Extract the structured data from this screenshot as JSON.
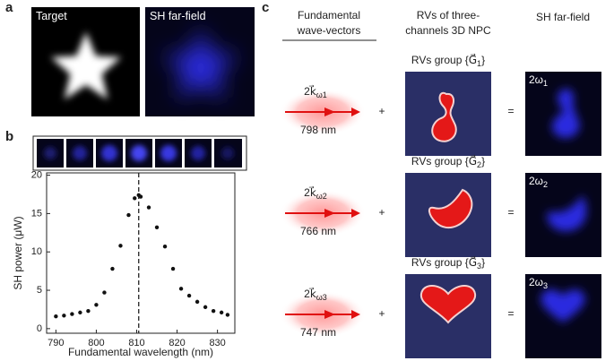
{
  "panel_labels": [
    "a",
    "b",
    "c"
  ],
  "panel_a": {
    "images": [
      "Target",
      "SH far-field"
    ]
  },
  "chart_data": {
    "type": "scatter",
    "x": [
      790,
      792,
      794,
      796,
      798,
      800,
      802,
      804,
      806,
      808,
      809.5,
      810.5,
      811,
      813,
      815,
      817,
      819,
      821,
      823,
      825,
      827,
      829,
      831,
      832.5
    ],
    "values": [
      1.6,
      1.7,
      1.9,
      2.1,
      2.3,
      3.1,
      4.7,
      7.8,
      10.8,
      14.8,
      17.0,
      17.4,
      17.2,
      15.8,
      13.2,
      10.7,
      7.8,
      5.2,
      4.3,
      3.5,
      2.8,
      2.3,
      2.1,
      1.8
    ],
    "color": "#111111",
    "xlim": [
      787.7,
      834.3
    ],
    "ylim": [
      -0.6,
      20.3
    ],
    "xticks": [
      790,
      800,
      810,
      820,
      830
    ],
    "yticks": [
      0,
      5,
      10,
      15,
      20
    ],
    "xlabel": "Fundamental wavelength (nm)",
    "ylabel": "SH power (μW)",
    "vline": 810.5
  },
  "panel_c": {
    "headers": [
      [
        "Fundamental",
        "wave-vectors"
      ],
      [
        "RVs of three-",
        "channels 3D NPC"
      ],
      [
        "SH far-field"
      ]
    ],
    "plus": "+",
    "equals": "=",
    "rows": [
      {
        "wavevector": {
          "base": "2k⃗",
          "sub": "ω1"
        },
        "wavelength": "798 nm",
        "group": {
          "prefix": "RVs group {G⃗",
          "sub": "1",
          "suffix": "}"
        },
        "harmonic": {
          "base": "2ω",
          "sub": "1"
        }
      },
      {
        "wavevector": {
          "base": "2k⃗",
          "sub": "ω2"
        },
        "wavelength": "766 nm",
        "group": {
          "prefix": "RVs group {G⃗",
          "sub": "2",
          "suffix": "}"
        },
        "harmonic": {
          "base": "2ω",
          "sub": "2"
        }
      },
      {
        "wavevector": {
          "base": "2k⃗",
          "sub": "ω3"
        },
        "wavelength": "747 nm",
        "group": {
          "prefix": "RVs group {G⃗",
          "sub": "3",
          "suffix": "}"
        },
        "harmonic": {
          "base": "2ω",
          "sub": "3"
        }
      }
    ]
  }
}
